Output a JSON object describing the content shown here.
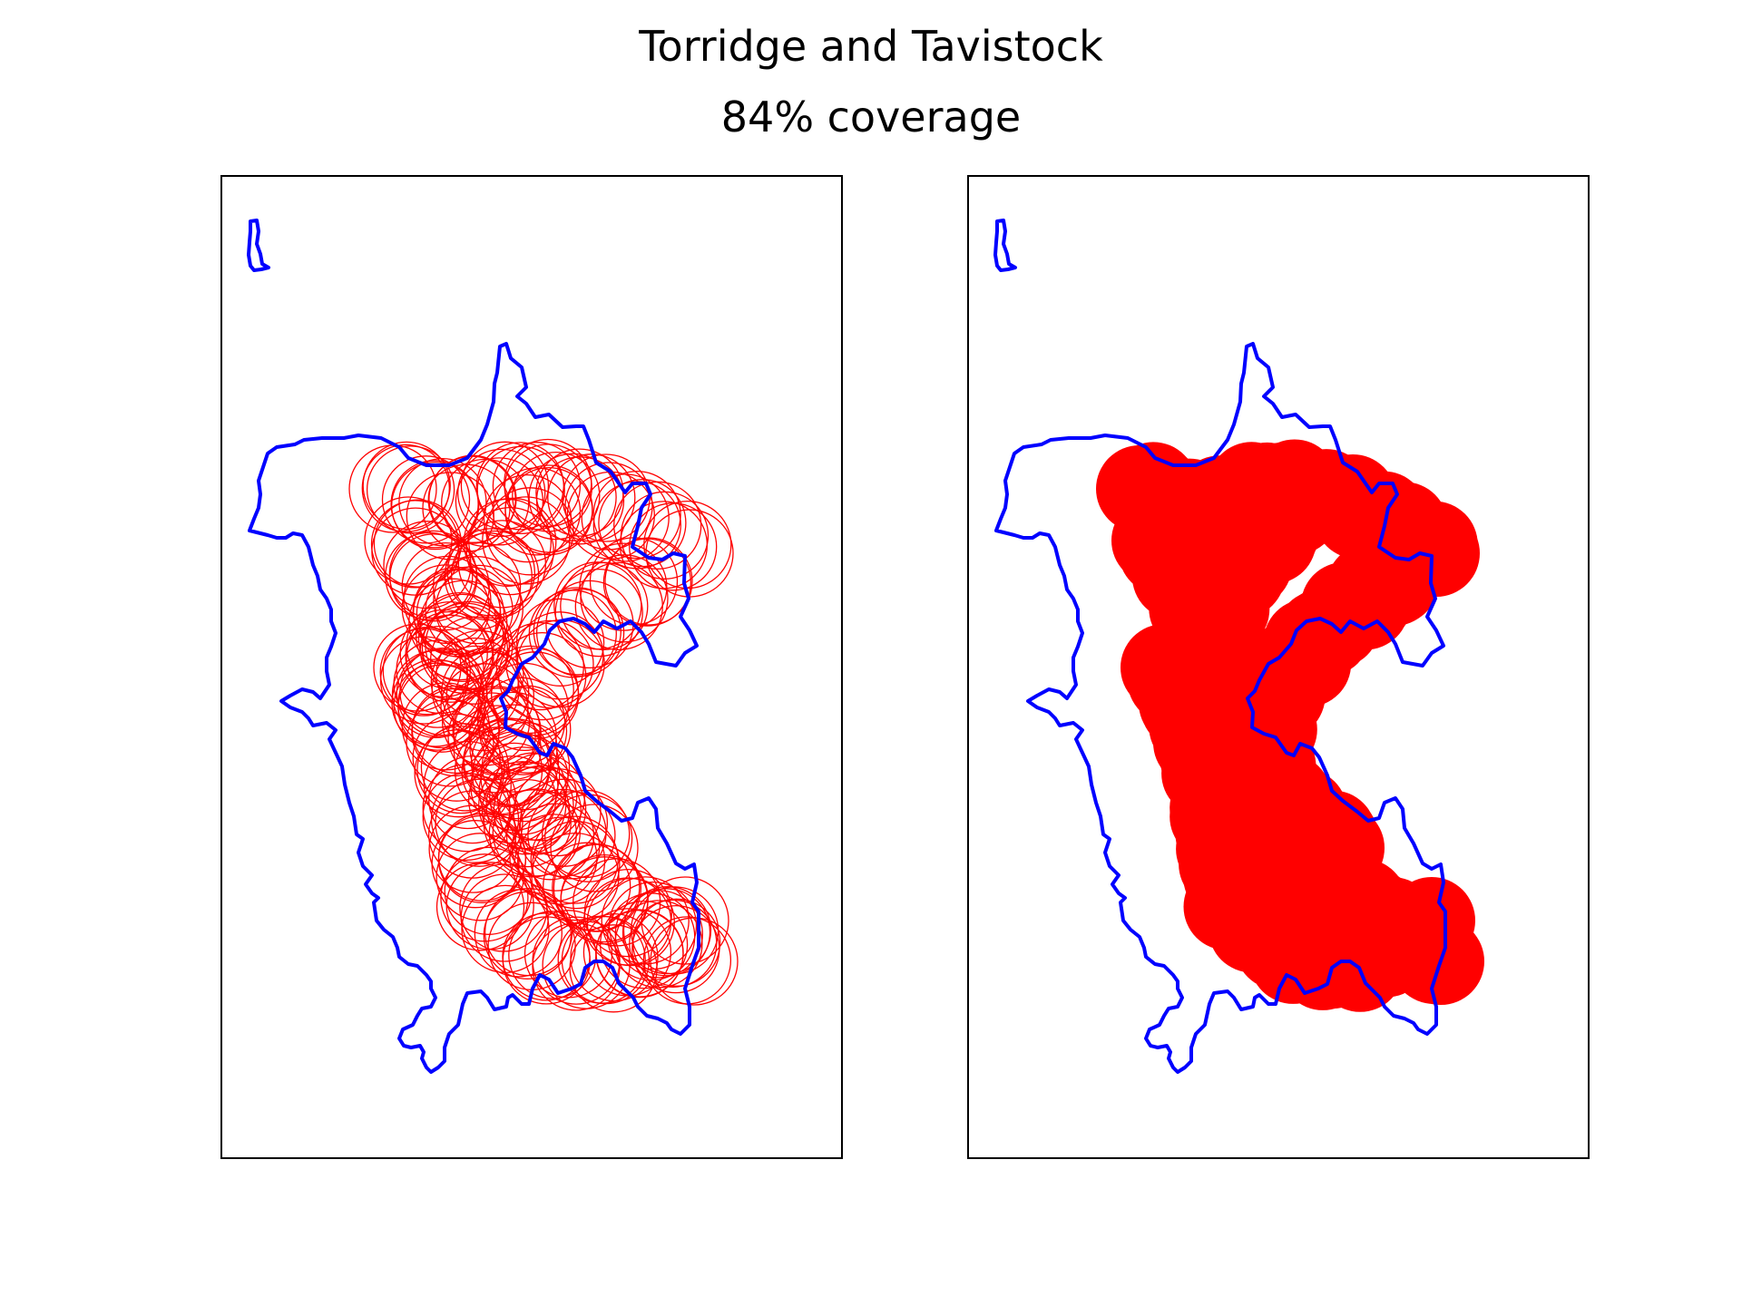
{
  "title": {
    "line1": "Torridge and Tavistock",
    "line2": "84% coverage"
  },
  "colors": {
    "boundary": "#0000ff",
    "coverage": "#ff0000",
    "frame": "#000000",
    "background": "#ffffff"
  },
  "panels": [
    {
      "name": "circles-outline",
      "style": "outline"
    },
    {
      "name": "circles-filled",
      "style": "filled"
    }
  ],
  "coverage_percent": 84
}
